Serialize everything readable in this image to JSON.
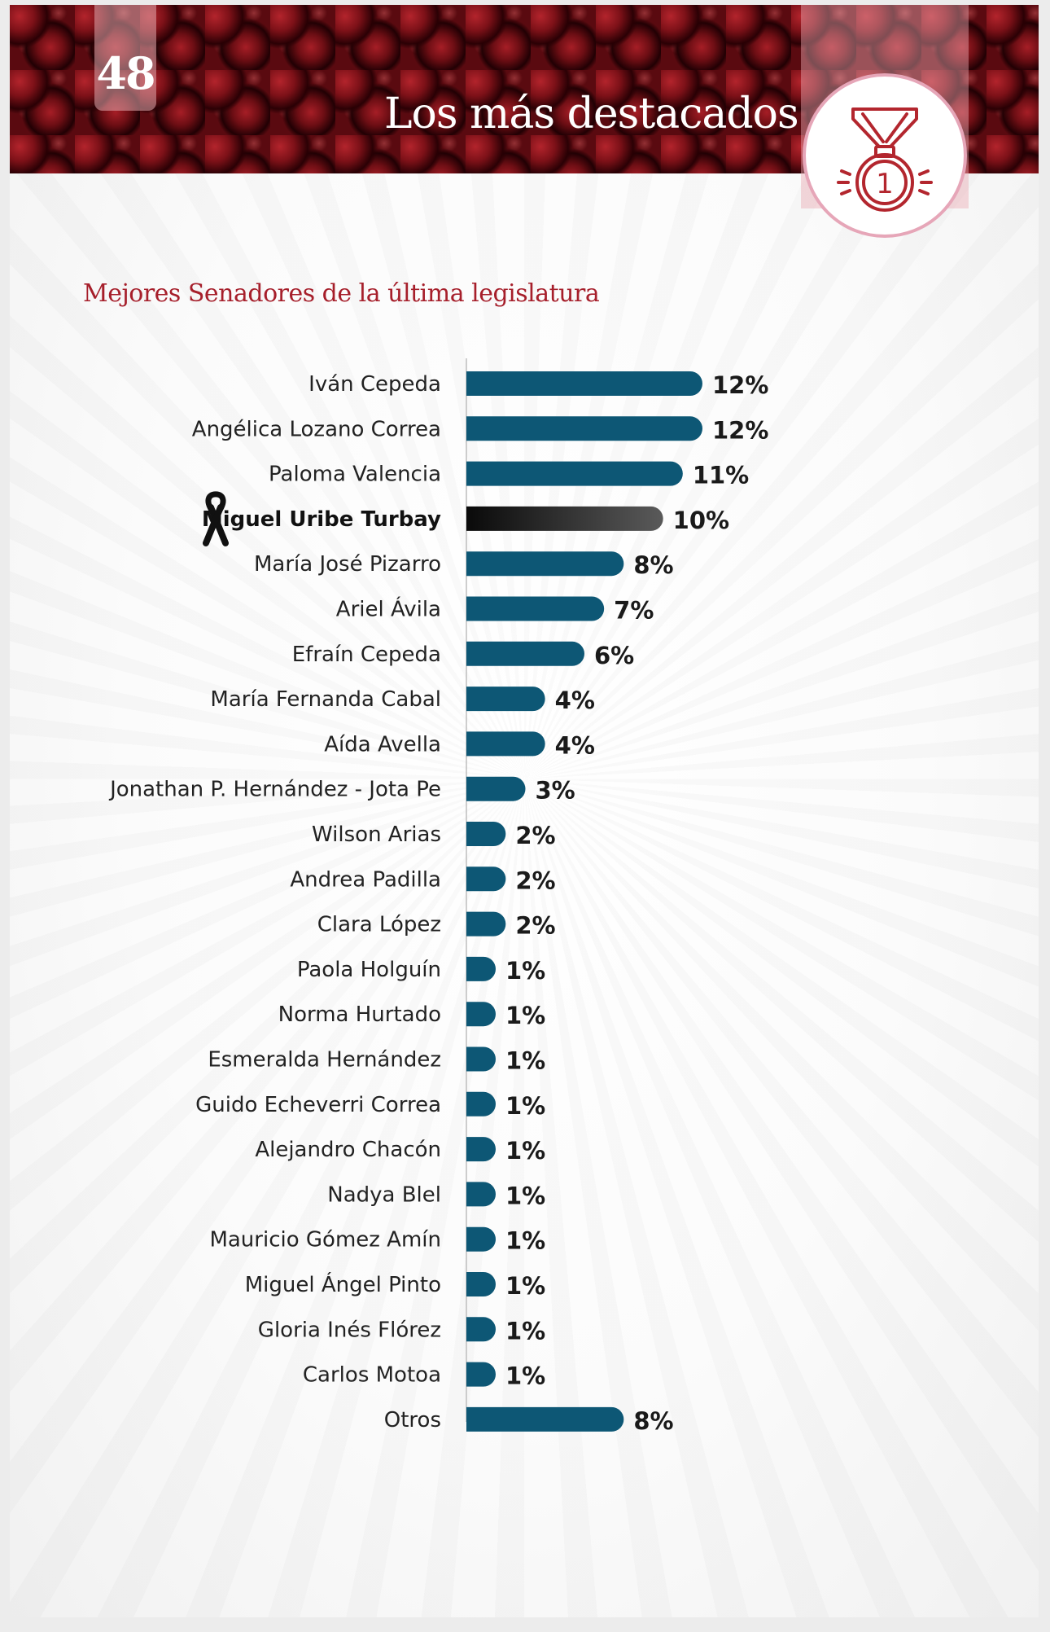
{
  "header": {
    "page_number": "48",
    "title": "Los más destacados",
    "medal_icon": "medal-first-place-icon",
    "medal_number": "1"
  },
  "colors": {
    "bar": "#0d5775",
    "highlight_bar_start": "#0a0a0a",
    "highlight_bar_end": "#5a5a5a",
    "title": "#a61f2b",
    "medal": "#b3262e",
    "banner": "#7a1016"
  },
  "chart_data": {
    "type": "bar",
    "orientation": "horizontal",
    "title": "Mejores Senadores de la última legislatura",
    "xlabel": "",
    "ylabel": "",
    "xlim": [
      0,
      12
    ],
    "grid": false,
    "legend": "none",
    "highlight_index": 3,
    "highlight_icon": "black-mourning-ribbon-icon",
    "categories": [
      "Iván Cepeda",
      "Angélica Lozano Correa",
      "Paloma Valencia",
      "Miguel Uribe Turbay",
      "María José Pizarro",
      "Ariel Ávila",
      "Efraín Cepeda",
      "María Fernanda Cabal",
      "Aída Avella",
      "Jonathan P. Hernández - Jota Pe",
      "Wilson Arias",
      "Andrea Padilla",
      "Clara López",
      "Paola Holguín",
      "Norma Hurtado",
      "Esmeralda Hernández",
      "Guido Echeverri Correa",
      "Alejandro Chacón",
      "Nadya Blel",
      "Mauricio Gómez Amín",
      "Miguel Ángel Pinto",
      "Gloria Inés Flórez",
      "Carlos Motoa",
      "Otros"
    ],
    "values": [
      12,
      12,
      11,
      10,
      8,
      7,
      6,
      4,
      4,
      3,
      2,
      2,
      2,
      1,
      1,
      1,
      1,
      1,
      1,
      1,
      1,
      1,
      1,
      8
    ],
    "value_labels": [
      "12%",
      "12%",
      "11%",
      "10%",
      "8%",
      "7%",
      "6%",
      "4%",
      "4%",
      "3%",
      "2%",
      "2%",
      "2%",
      "1%",
      "1%",
      "1%",
      "1%",
      "1%",
      "1%",
      "1%",
      "1%",
      "1%",
      "1%",
      "8%"
    ]
  }
}
